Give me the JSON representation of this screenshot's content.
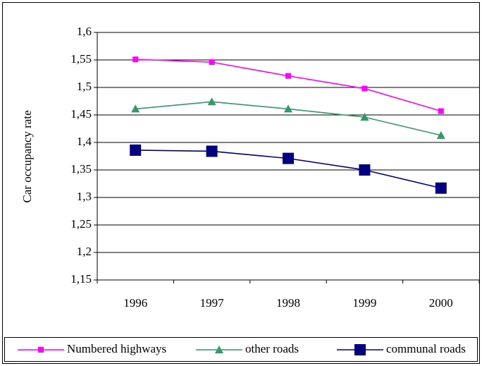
{
  "chart_data": {
    "type": "line",
    "y_label": "Car occupancy rate",
    "categories": [
      "1996",
      "1997",
      "1998",
      "1999",
      "2000"
    ],
    "series": [
      {
        "name": "Numbered highways",
        "color": "#ff00ff",
        "marker": "square",
        "values": [
          1.551,
          1.546,
          1.521,
          1.498,
          1.457
        ]
      },
      {
        "name": "other roads",
        "color": "#339966",
        "marker": "triangle",
        "values": [
          1.461,
          1.474,
          1.461,
          1.446,
          1.413
        ]
      },
      {
        "name": "communal roads",
        "color": "#000080",
        "marker": "big-square",
        "values": [
          1.386,
          1.384,
          1.371,
          1.35,
          1.317
        ]
      }
    ],
    "ylim": [
      1.15,
      1.6
    ],
    "yticks": [
      {
        "value": 1.15,
        "label": "1,15"
      },
      {
        "value": 1.2,
        "label": "1,2"
      },
      {
        "value": 1.25,
        "label": "1,25"
      },
      {
        "value": 1.3,
        "label": "1,3"
      },
      {
        "value": 1.35,
        "label": "1,35"
      },
      {
        "value": 1.4,
        "label": "1,4"
      },
      {
        "value": 1.45,
        "label": "1,45"
      },
      {
        "value": 1.5,
        "label": "1,5"
      },
      {
        "value": 1.55,
        "label": "1,55"
      },
      {
        "value": 1.6,
        "label": "1,6"
      }
    ],
    "grid": true,
    "legend": "bottom"
  }
}
